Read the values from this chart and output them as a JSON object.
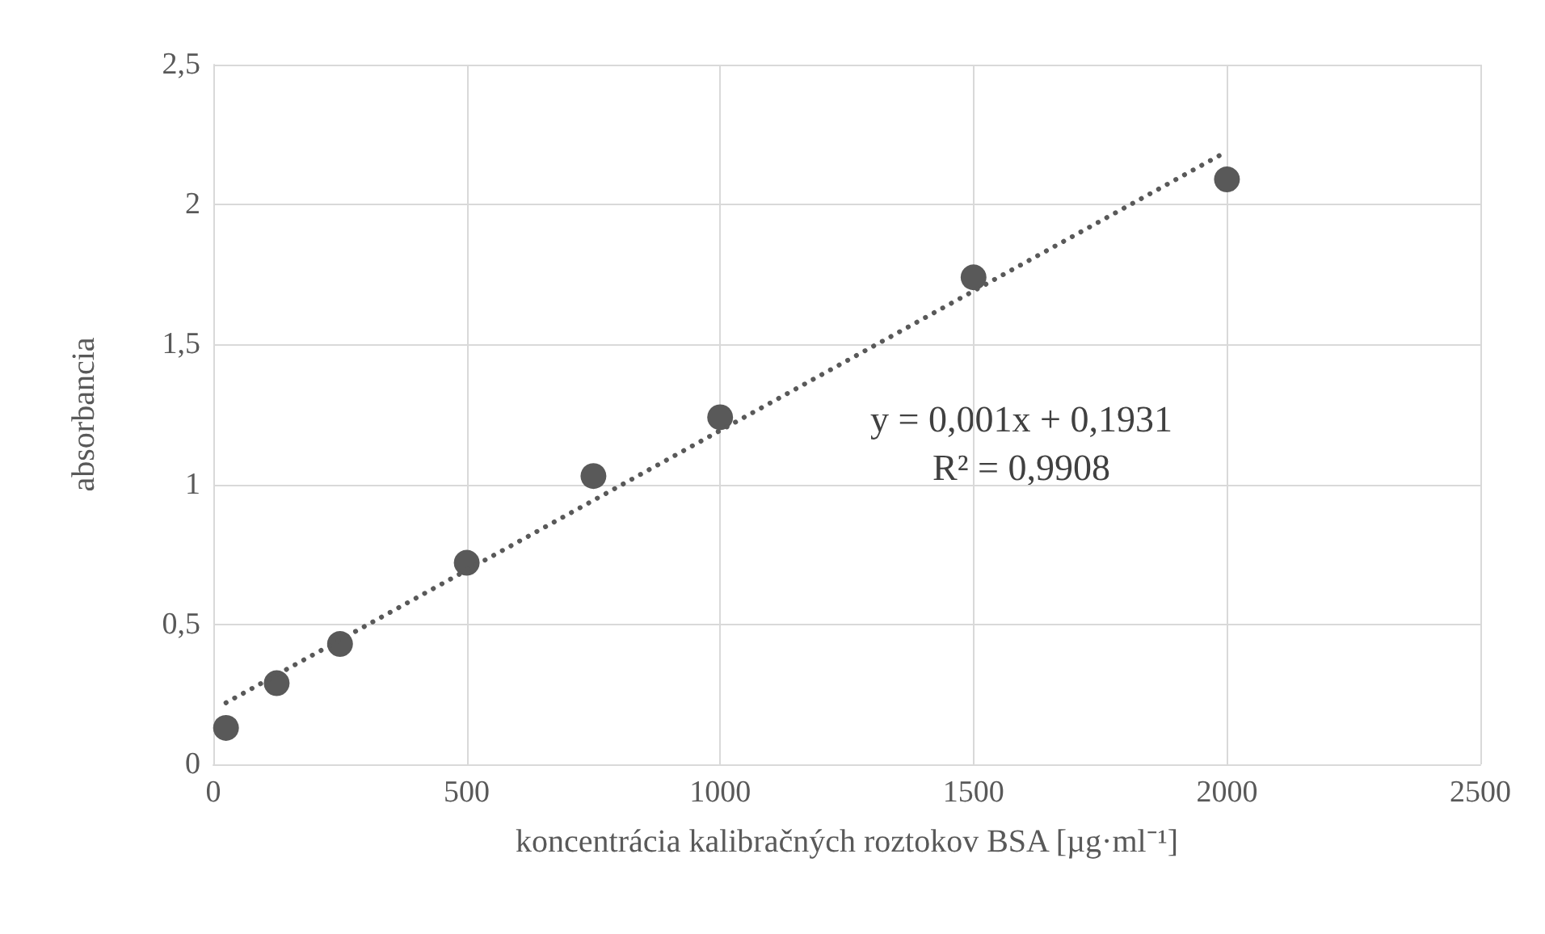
{
  "chart_data": {
    "type": "scatter",
    "xlabel": "koncentrácia kalibračných roztokov BSA [µg·ml⁻¹]",
    "ylabel": "absorbancia",
    "series": [
      {
        "color": "#595959",
        "marker": "circle",
        "x": [
          25,
          125,
          250,
          500,
          750,
          1000,
          1500,
          2000
        ],
        "values": [
          0.13,
          0.29,
          0.43,
          0.72,
          1.03,
          1.24,
          1.74,
          2.09
        ]
      },
      {
        "type": "line",
        "color": "#595959",
        "marker": "none",
        "line_style": "dotted",
        "x": [
          25,
          2000
        ],
        "values": [
          0.22,
          2.19
        ]
      }
    ],
    "xlim": [
      0,
      2500
    ],
    "xticks": [
      0,
      500,
      1000,
      1500,
      2000,
      2500
    ],
    "ylim": [
      0,
      2.5
    ],
    "yticks": [
      0,
      {
        "value": 0.5,
        "label": "0,5"
      },
      1,
      {
        "value": 1.5,
        "label": "1,5"
      },
      2,
      {
        "value": 2.5,
        "label": "2,5"
      }
    ],
    "annotations": [
      "y = 0,001x + 0,1931",
      "R² = 0,9908"
    ],
    "grid": true
  }
}
